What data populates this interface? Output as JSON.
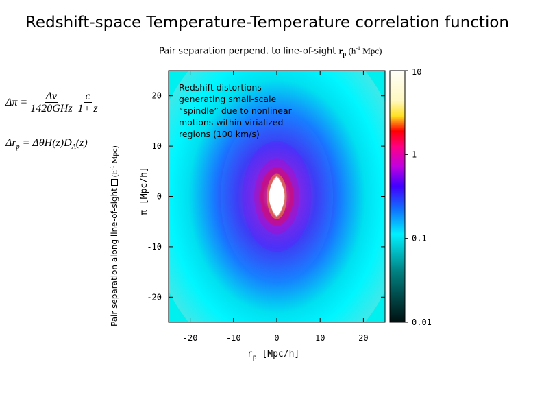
{
  "slide": {
    "title": "Redshift-space Temperature-Temperature correlation function",
    "top_caption_text": "Pair separation perpend. to line-of-sight ",
    "top_caption_symbol": "r",
    "top_caption_subscript": "p",
    "top_caption_units": " (h",
    "top_caption_units_exp": "-1",
    "top_caption_units_end": " Mpc)",
    "side_caption_text": "Pair separation along line-of-sight",
    "side_caption_units": "(h",
    "side_caption_units_exp": "-1",
    "side_caption_units_end": " Mpc)",
    "annotation": "Redshift distortions generating small-scale “spindle” due to nonlinear motions within virialized regions (100 km/s)"
  },
  "equations": {
    "eq1_lhs": "Δπ =",
    "eq1_num1": "Δν",
    "eq1_den1": "1420GHz",
    "eq1_num2": "c",
    "eq1_den2": "1+ z",
    "eq2": "Δr",
    "eq2_sub": "p",
    "eq2_rhs": " = ΔθH(z)D",
    "eq2_sub2": "A",
    "eq2_end": "(z)"
  },
  "colors": {
    "background_field": "#00f0f0",
    "core": "#ffffff"
  },
  "chart_data": {
    "type": "heatmap",
    "xlabel": "r",
    "xlabel_sub": "p",
    "xlabel_units": " [Mpc/h]",
    "ylabel": "π [Mpc/h]",
    "xlim": [
      -25,
      25
    ],
    "ylim": [
      -25,
      25
    ],
    "x_ticks": [
      "-20",
      "-10",
      "0",
      "10",
      "20"
    ],
    "x_tick_values": [
      -20,
      -10,
      0,
      10,
      20
    ],
    "y_ticks": [
      "20",
      "10",
      "0",
      "-10",
      "-20"
    ],
    "y_tick_values": [
      20,
      10,
      0,
      -10,
      -20
    ],
    "colorbar": {
      "scale": "log",
      "range": [
        0.01,
        10
      ],
      "tick_labels": [
        "10",
        "1",
        "0.1",
        "0.01"
      ],
      "tick_values": [
        10,
        1,
        0.1,
        0.01
      ]
    },
    "contours": [
      {
        "level": 0.1,
        "rx": 22,
        "ry": 28,
        "color": "#00ffff"
      },
      {
        "level": 0.2,
        "rx": 13,
        "ry": 17,
        "color": "#2080ff"
      },
      {
        "level": 0.4,
        "rx": 8,
        "ry": 11,
        "color": "#6020ff"
      },
      {
        "level": 0.8,
        "rx": 5.2,
        "ry": 7.5,
        "color": "#c000c0"
      },
      {
        "level": 2,
        "rx": 3.8,
        "ry": 5.8,
        "color": "#ff0040"
      },
      {
        "level": 5,
        "rx": 2.3,
        "ry": 4.5,
        "color": "#ffe000"
      },
      {
        "level": 10,
        "rx": 1.5,
        "ry": 4.0,
        "color": "#ffffff"
      }
    ]
  }
}
